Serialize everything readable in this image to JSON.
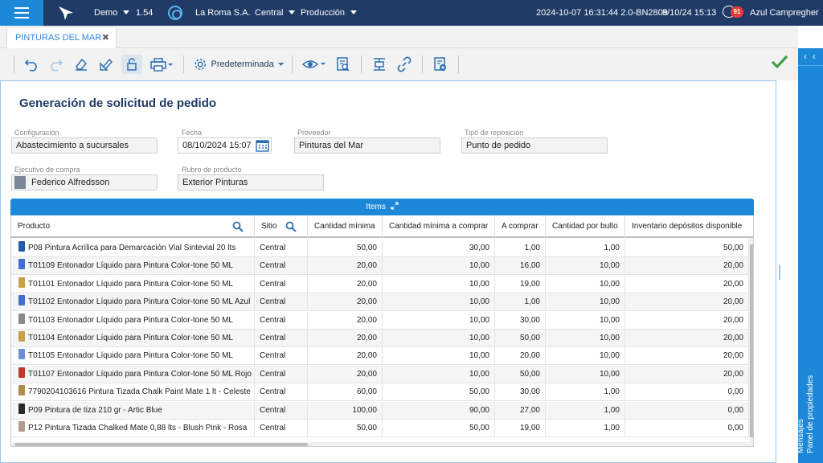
{
  "topbar": {
    "env": "Demo",
    "version": "1.54",
    "company": "La Roma S.A.",
    "branch": "Central",
    "mode": "Producción",
    "build_info": "2024-10-07 16:31:44 2.0-BN2809",
    "datetime": "8/10/24 15:13",
    "notifications": "91",
    "user": "Azul Campregher"
  },
  "tab": {
    "label": "PINTURAS DEL MAR",
    "close": "✖"
  },
  "toolbar": {
    "view_label": "Predeterminada"
  },
  "right_panel": {
    "label1": "Panel de propiedades",
    "label2": "Mensajes",
    "arrows": "‹ ‹"
  },
  "form": {
    "title": "Generación de solicitud de pedido",
    "configuracion_label": "Configuración",
    "configuracion_value": "Abastecimiento a sucursales",
    "fecha_label": "Fecha",
    "fecha_value": "08/10/2024 15:07",
    "proveedor_label": "Proveedor",
    "proveedor_value": "Pinturas del Mar",
    "tipo_label": "Tipo de reposición",
    "tipo_value": "Punto de pedido",
    "ejecutivo_label": "Ejecutivo de compra",
    "ejecutivo_value": "Federico Alfredsson",
    "rubro_label": "Rubro de producto",
    "rubro_value": "Exterior Pinturas"
  },
  "items": {
    "title": "Items",
    "columns": [
      "Producto",
      "Sitio",
      "Cantidad mínima",
      "Cantidad mínima a comprar",
      "A comprar",
      "Cantidad por bulto",
      "Inventario depósitos disponible"
    ],
    "rows": [
      [
        "P08 Pintura Acrílica para Demarcación Vial Sintevial 20 lts",
        "Central",
        "50,00",
        "30,00",
        "1,00",
        "1,00",
        "50,00"
      ],
      [
        "T01109 Entonador Líquido para Pintura Color-tone 50 ML",
        "Central",
        "20,00",
        "10,00",
        "16,00",
        "10,00",
        "20,00"
      ],
      [
        "T01101 Entonador Líquido para Pintura Color-tone 50 ML",
        "Central",
        "20,00",
        "10,00",
        "19,00",
        "10,00",
        "20,00"
      ],
      [
        "T01102 Entonador Líquido para Pintura Color-tone 50 ML Azul",
        "Central",
        "20,00",
        "10,00",
        "1,00",
        "10,00",
        "20,00"
      ],
      [
        "T01103 Entonador Líquido para Pintura Color-tone 50 ML",
        "Central",
        "20,00",
        "10,00",
        "30,00",
        "10,00",
        "20,00"
      ],
      [
        "T01104 Entonador Líquido para Pintura Color-tone 50 ML",
        "Central",
        "20,00",
        "10,00",
        "50,00",
        "10,00",
        "20,00"
      ],
      [
        "T01105 Entonador Líquido para Pintura Color-tone 50 ML",
        "Central",
        "20,00",
        "10,00",
        "20,00",
        "10,00",
        "20,00"
      ],
      [
        "T01107 Entonador Líquido para Pintura Color-tone 50 ML Rojo",
        "Central",
        "20,00",
        "10,00",
        "50,00",
        "10,00",
        "20,00"
      ],
      [
        "7790204103616 Pintura Tizada Chalk Paint Mate 1 lt - Celeste",
        "Central",
        "60,00",
        "50,00",
        "30,00",
        "1,00",
        "0,00"
      ],
      [
        "P09 Pintura de tiza 210 gr - Artic Blue",
        "Central",
        "100,00",
        "90,00",
        "27,00",
        "1,00",
        "0,00"
      ],
      [
        "P12 Pintura Tizada Chalked Mate 0,88 lts - Blush Pink - Rosa",
        "Central",
        "50,00",
        "50,00",
        "19,00",
        "1,00",
        "0,00"
      ]
    ],
    "product_colors": [
      "#1d5fa8",
      "#3f6fd1",
      "#c8a24a",
      "#3f6fd1",
      "#8a8a8a",
      "#c8a24a",
      "#6b8fd6",
      "#c0392b",
      "#b08d4a",
      "#2b2b2b",
      "#b59b8a"
    ]
  }
}
